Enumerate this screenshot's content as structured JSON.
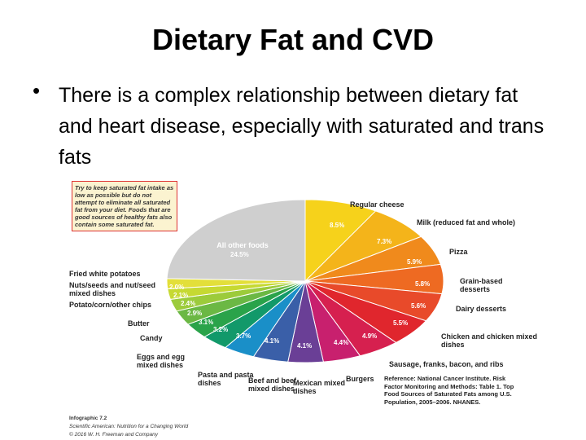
{
  "slide": {
    "title": "Dietary Fat and CVD",
    "bullet": "There is a complex relationship between dietary fat and heart disease, especially with saturated and trans fats"
  },
  "chart_data": {
    "type": "pie",
    "categories": [
      "Regular cheese",
      "Milk (reduced fat and whole)",
      "Pizza",
      "Grain-based desserts",
      "Dairy desserts",
      "Chicken and chicken mixed dishes",
      "Sausage, franks, bacon, and ribs",
      "Burgers",
      "Mexican mixed dishes",
      "Beef and beef mixed dishes",
      "Pasta and pasta dishes",
      "Eggs and egg mixed dishes",
      "Candy",
      "Butter",
      "Potato/corn/other chips",
      "Nuts/seeds and nut/seed mixed dishes",
      "Fried white potatoes",
      "All other foods"
    ],
    "values": [
      8.5,
      7.3,
      5.9,
      5.8,
      5.6,
      5.5,
      4.9,
      4.4,
      4.1,
      4.1,
      3.7,
      3.2,
      3.1,
      2.9,
      2.4,
      2.1,
      2.0,
      24.5
    ],
    "value_labels": [
      "8.5%",
      "7.3%",
      "5.9%",
      "5.8%",
      "5.6%",
      "5.5%",
      "4.9%",
      "4.4%",
      "4.1%",
      "4.1%",
      "3.7%",
      "3.2%",
      "3.1%",
      "2.9%",
      "2.4%",
      "2.1%",
      "2.0%",
      "24.5%"
    ],
    "colors": [
      "#f6d21b",
      "#f4b41a",
      "#f08a1c",
      "#ee6a22",
      "#e84a2a",
      "#e0262d",
      "#d6204f",
      "#c8206e",
      "#6a3f96",
      "#3a5fa8",
      "#1a8fc8",
      "#12996a",
      "#2aa34a",
      "#6bb844",
      "#9ccb3b",
      "#c6d932",
      "#e3df3a",
      "#cfcfcf"
    ],
    "note": "Try to keep saturated fat intake as low as possible but do not attempt to eliminate all saturated fat from your diet. Foods that are good sources of healthy fats also contain some saturated fat.",
    "reference": "Reference: National Cancer Institute. Risk Factor Monitoring and Methods: Table 1. Top Food Sources of Saturated Fats among U.S. Population, 2005–2006. NHANES.",
    "credits": [
      "Infographic 7.2",
      "Scientific American: Nutrition for a Changing World",
      "© 2016 W. H. Freeman and Company"
    ]
  }
}
